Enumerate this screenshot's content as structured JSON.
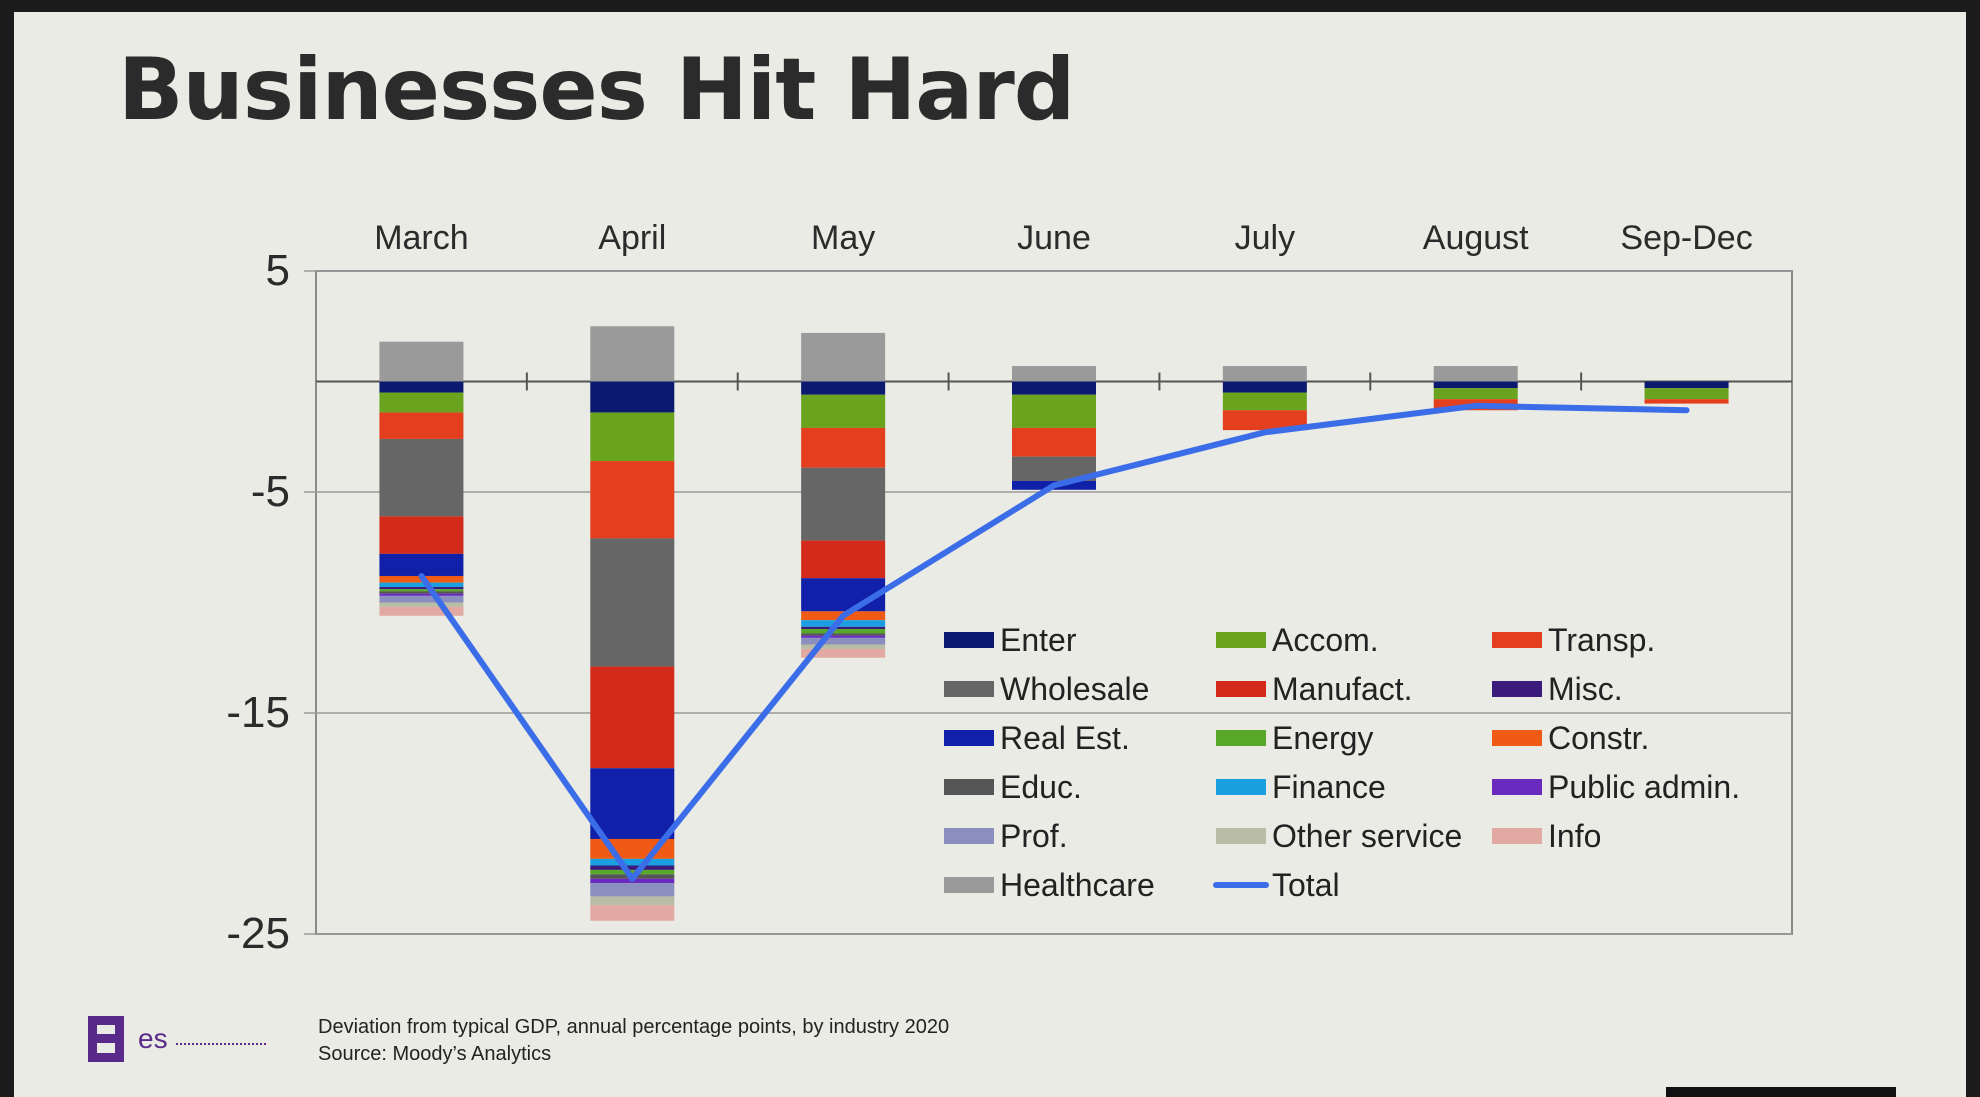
{
  "title": "Businesses Hit Hard",
  "caption_line1": "Deviation from typical GDP, annual percentage points, by industry 2020",
  "caption_line2": "Source: Moody’s Analytics",
  "logo_text": "es",
  "chart_data": {
    "type": "bar",
    "stacked": true,
    "title": "Businesses Hit Hard",
    "categories": [
      "March",
      "April",
      "May",
      "June",
      "July",
      "August",
      "Sep-Dec"
    ],
    "ylim": [
      -25,
      5
    ],
    "yticks": [
      5,
      -5,
      -15,
      -25
    ],
    "category_axis_position": "top",
    "legend_position": "lower-right",
    "series": [
      {
        "name": "Healthcare",
        "color": "#9a9a9a",
        "values": [
          1.8,
          2.5,
          2.2,
          0.7,
          0.7,
          0.7,
          0
        ]
      },
      {
        "name": "Enter",
        "color": "#0b1a6e",
        "values": [
          -0.5,
          -1.4,
          -0.6,
          -0.6,
          -0.5,
          -0.3,
          -0.3
        ]
      },
      {
        "name": "Accom.",
        "color": "#6aa31e",
        "values": [
          -0.9,
          -2.2,
          -1.5,
          -1.5,
          -0.8,
          -0.5,
          -0.5
        ]
      },
      {
        "name": "Transp.",
        "color": "#e33f1e",
        "values": [
          -1.2,
          -3.5,
          -1.8,
          -1.3,
          -0.9,
          -0.5,
          -0.2
        ]
      },
      {
        "name": "Wholesale",
        "color": "#666666",
        "values": [
          -3.5,
          -5.8,
          -3.3,
          -1.1,
          0,
          0,
          0
        ]
      },
      {
        "name": "Manufact.",
        "color": "#d22b1c",
        "values": [
          -1.7,
          -4.6,
          -1.7,
          0,
          0,
          0,
          0
        ]
      },
      {
        "name": "Real Est.",
        "color": "#1020a8",
        "values": [
          -1.0,
          -3.2,
          -1.5,
          -0.4,
          0,
          0,
          0
        ]
      },
      {
        "name": "Constr.",
        "color": "#ef5a14",
        "values": [
          -0.3,
          -0.9,
          -0.4,
          0,
          0,
          0,
          0
        ]
      },
      {
        "name": "Finance",
        "color": "#1aa0e0",
        "values": [
          -0.2,
          -0.3,
          -0.3,
          0,
          0,
          0,
          0
        ]
      },
      {
        "name": "Misc.",
        "color": "#3a1a7a",
        "values": [
          -0.1,
          -0.2,
          -0.1,
          0,
          0,
          0,
          0
        ]
      },
      {
        "name": "Energy",
        "color": "#5aa82a",
        "values": [
          -0.1,
          -0.2,
          -0.2,
          0,
          0,
          0,
          0
        ]
      },
      {
        "name": "Educ.",
        "color": "#555555",
        "values": [
          -0.1,
          -0.2,
          -0.1,
          0,
          0,
          0,
          0
        ]
      },
      {
        "name": "Public admin.",
        "color": "#6a2ac0",
        "values": [
          -0.1,
          -0.2,
          -0.1,
          0,
          0,
          0,
          0
        ]
      },
      {
        "name": "Prof.",
        "color": "#8a8fbf",
        "values": [
          -0.3,
          -0.6,
          -0.3,
          0,
          0,
          0,
          0
        ]
      },
      {
        "name": "Other service",
        "color": "#b9bda6",
        "values": [
          -0.2,
          -0.4,
          -0.2,
          0,
          0,
          0,
          0
        ]
      },
      {
        "name": "Info",
        "color": "#e2a9a2",
        "values": [
          -0.4,
          -0.7,
          -0.4,
          0,
          0,
          0,
          0
        ]
      }
    ],
    "line": {
      "name": "Total",
      "color": "#3b6de8",
      "values": [
        -8.8,
        -22.5,
        -10.6,
        -4.7,
        -2.3,
        -1.1,
        -1.3
      ]
    },
    "legend_order": [
      "Enter",
      "Accom.",
      "Transp.",
      "Wholesale",
      "Manufact.",
      "Misc.",
      "Real Est.",
      "Energy",
      "Constr.",
      "Educ.",
      "Finance",
      "Public admin.",
      "Prof.",
      "Other service",
      "Info",
      "Healthcare",
      "Total"
    ]
  }
}
